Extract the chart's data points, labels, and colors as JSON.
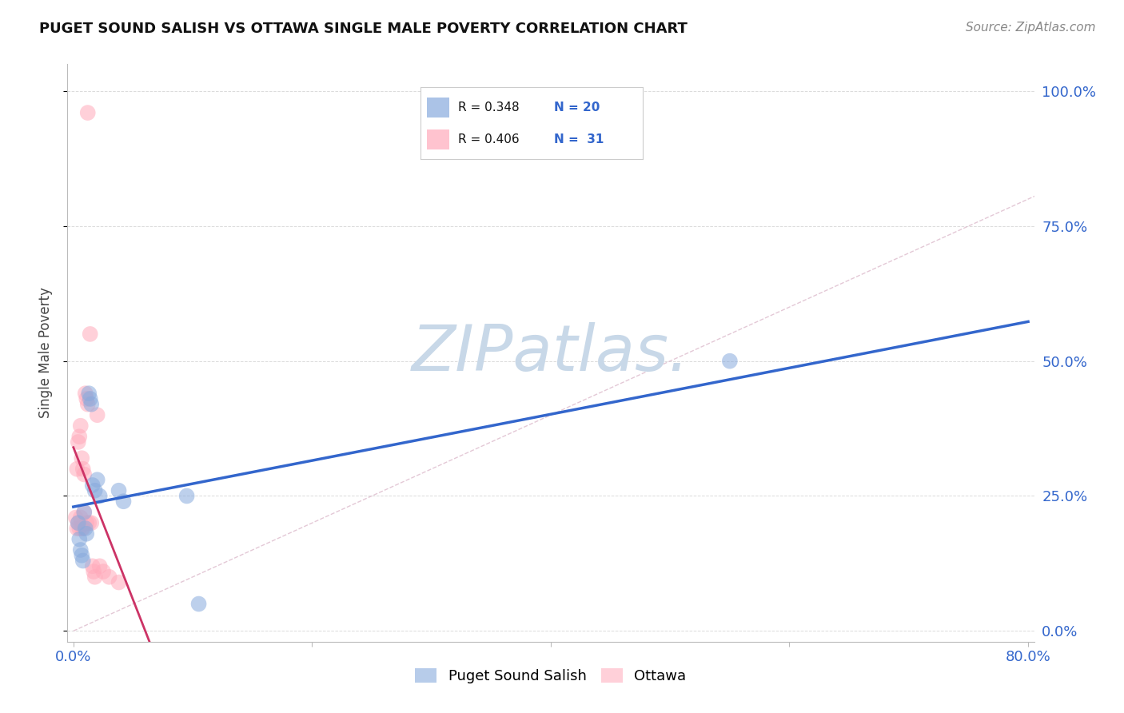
{
  "title": "PUGET SOUND SALISH VS OTTAWA SINGLE MALE POVERTY CORRELATION CHART",
  "source": "Source: ZipAtlas.com",
  "ylabel": "Single Male Poverty",
  "blue_color": "#88AADD",
  "pink_color": "#FFAABB",
  "blue_line_color": "#3366CC",
  "pink_line_color": "#CC3366",
  "diag_color": "#DDBBCC",
  "grid_color": "#CCCCCC",
  "watermark_color": "#C8D8E8",
  "blue_scatter_x": [
    0.004,
    0.005,
    0.006,
    0.007,
    0.008,
    0.009,
    0.01,
    0.011,
    0.013,
    0.014,
    0.015,
    0.016,
    0.018,
    0.02,
    0.022,
    0.038,
    0.042,
    0.095,
    0.105,
    0.55
  ],
  "blue_scatter_y": [
    0.2,
    0.17,
    0.15,
    0.14,
    0.13,
    0.22,
    0.19,
    0.18,
    0.44,
    0.43,
    0.42,
    0.27,
    0.26,
    0.28,
    0.25,
    0.26,
    0.24,
    0.25,
    0.05,
    0.5
  ],
  "pink_scatter_x": [
    0.002,
    0.003,
    0.003,
    0.004,
    0.004,
    0.005,
    0.005,
    0.006,
    0.006,
    0.007,
    0.007,
    0.008,
    0.008,
    0.009,
    0.009,
    0.01,
    0.011,
    0.011,
    0.012,
    0.013,
    0.014,
    0.015,
    0.016,
    0.017,
    0.018,
    0.02,
    0.022,
    0.025,
    0.03,
    0.038,
    0.012
  ],
  "pink_scatter_y": [
    0.21,
    0.3,
    0.19,
    0.35,
    0.2,
    0.36,
    0.19,
    0.38,
    0.21,
    0.32,
    0.19,
    0.3,
    0.19,
    0.29,
    0.22,
    0.44,
    0.43,
    0.2,
    0.42,
    0.2,
    0.55,
    0.2,
    0.12,
    0.11,
    0.1,
    0.4,
    0.12,
    0.11,
    0.1,
    0.09,
    0.96
  ],
  "xlim": [
    0.0,
    0.8
  ],
  "ylim": [
    0.0,
    1.05
  ],
  "xtick_positions": [
    0.0,
    0.2,
    0.4,
    0.6,
    0.8
  ],
  "ytick_positions": [
    0.0,
    0.25,
    0.5,
    0.75,
    1.0
  ],
  "ytick_labels_right": [
    "0.0%",
    "25.0%",
    "50.0%",
    "75.0%",
    "100.0%"
  ],
  "legend_blue_label": "R = 0.348   N = 20",
  "legend_pink_label": "R = 0.406   N =  31",
  "bottom_legend_blue": "Puget Sound Salish",
  "bottom_legend_pink": "Ottawa"
}
